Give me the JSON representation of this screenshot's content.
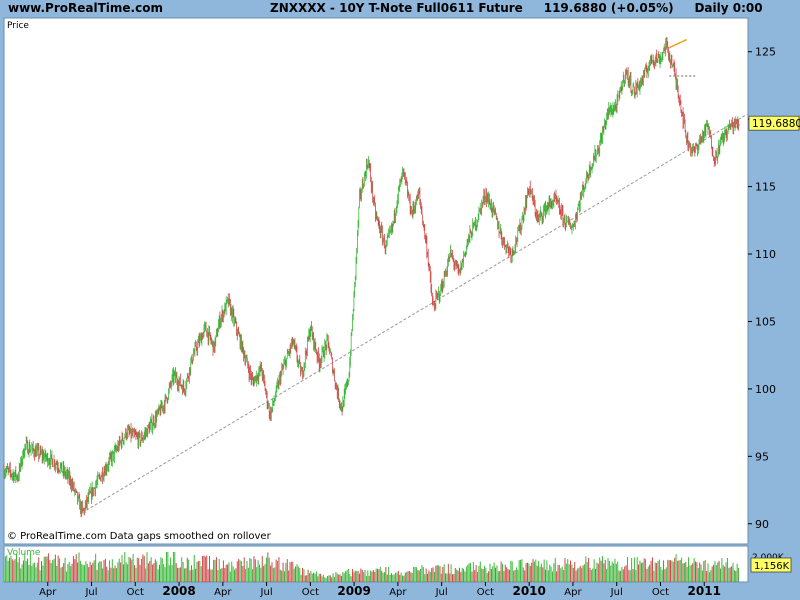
{
  "header": {
    "site": "www.ProRealTime.com",
    "title": "ZNXXXX - 10Y T-Note Full0611 Future",
    "last_price": "119.6880",
    "change": "(+0.05%)",
    "timeframe": "Daily",
    "time": "0:00"
  },
  "colors": {
    "frame_bg": "#8fb7dc",
    "plot_bg": "#ffffff",
    "up": "#3cb83c",
    "down": "#d04848",
    "trendline": "#9a9a9a",
    "price_tag": "#ffff66",
    "annotation_orange": "#f0a020"
  },
  "price_panel": {
    "label": "Price",
    "footer": "© ProRealTime.com  Data gaps smoothed on rollover",
    "last_value_tag": "119.6880"
  },
  "volume_panel": {
    "label": "Volume",
    "top_tick": "2.000K",
    "last_value_tag": "1,156K"
  },
  "chart_data": {
    "type": "line",
    "title": "ZNXXXX - 10Y T-Note Full0611 Future",
    "ylabel": "",
    "y_ticks": [
      90,
      95,
      100,
      105,
      110,
      115,
      120,
      125
    ],
    "y_tick_labels": [
      "90",
      "95",
      "100",
      "105",
      "110",
      "115",
      "",
      "125"
    ],
    "ylim": [
      88.5,
      127.5
    ],
    "xlim": [
      2007.0,
      2011.25
    ],
    "x_ticks": [
      {
        "x": 2007.25,
        "label": "Apr",
        "bold": false
      },
      {
        "x": 2007.5,
        "label": "Jul",
        "bold": false
      },
      {
        "x": 2007.75,
        "label": "Oct",
        "bold": false
      },
      {
        "x": 2008.0,
        "label": "2008",
        "bold": true
      },
      {
        "x": 2008.25,
        "label": "Apr",
        "bold": false
      },
      {
        "x": 2008.5,
        "label": "Jul",
        "bold": false
      },
      {
        "x": 2008.75,
        "label": "Oct",
        "bold": false
      },
      {
        "x": 2009.0,
        "label": "2009",
        "bold": true
      },
      {
        "x": 2009.25,
        "label": "Apr",
        "bold": false
      },
      {
        "x": 2009.5,
        "label": "Jul",
        "bold": false
      },
      {
        "x": 2009.75,
        "label": "Oct",
        "bold": false
      },
      {
        "x": 2010.0,
        "label": "2010",
        "bold": true
      },
      {
        "x": 2010.25,
        "label": "Apr",
        "bold": false
      },
      {
        "x": 2010.5,
        "label": "Jul",
        "bold": false
      },
      {
        "x": 2010.75,
        "label": "Oct",
        "bold": false
      },
      {
        "x": 2011.0,
        "label": "2011",
        "bold": true
      }
    ],
    "series": [
      {
        "name": "",
        "x": [
          2007.0,
          2007.08,
          2007.12,
          2007.2,
          2007.3,
          2007.38,
          2007.45,
          2007.48,
          2007.55,
          2007.62,
          2007.7,
          2007.78,
          2007.85,
          2007.92,
          2007.97,
          2008.03,
          2008.08,
          2008.15,
          2008.2,
          2008.23,
          2008.28,
          2008.35,
          2008.42,
          2008.47,
          2008.52,
          2008.58,
          2008.65,
          2008.7,
          2008.75,
          2008.8,
          2008.85,
          2008.9,
          2008.93,
          2008.97,
          2009.0,
          2009.03,
          2009.08,
          2009.12,
          2009.18,
          2009.22,
          2009.25,
          2009.28,
          2009.33,
          2009.37,
          2009.42,
          2009.45,
          2009.5,
          2009.55,
          2009.6,
          2009.65,
          2009.7,
          2009.75,
          2009.8,
          2009.85,
          2009.9,
          2009.95,
          2010.0,
          2010.05,
          2010.1,
          2010.15,
          2010.2,
          2010.25,
          2010.3,
          2010.35,
          2010.4,
          2010.45,
          2010.5,
          2010.55,
          2010.6,
          2010.65,
          2010.7,
          2010.75,
          2010.78,
          2010.82,
          2010.86,
          2010.9,
          2010.94,
          2010.98,
          2011.02,
          2011.06,
          2011.1,
          2011.15,
          2011.2
        ],
        "y": [
          94.0,
          93.5,
          95.8,
          95.2,
          94.5,
          93.2,
          90.8,
          91.8,
          93.5,
          95.0,
          96.8,
          96.2,
          97.5,
          99.0,
          101.0,
          100.0,
          102.5,
          104.5,
          103.0,
          105.0,
          106.5,
          103.5,
          100.5,
          101.5,
          98.0,
          101.0,
          103.5,
          101.0,
          104.5,
          102.0,
          103.5,
          100.0,
          98.5,
          101.0,
          107.0,
          114.0,
          117.0,
          113.0,
          110.5,
          112.0,
          114.5,
          116.0,
          113.0,
          114.5,
          110.0,
          106.0,
          107.5,
          110.0,
          108.5,
          111.0,
          112.5,
          114.5,
          113.0,
          111.0,
          110.0,
          112.0,
          115.0,
          112.5,
          113.5,
          114.0,
          112.5,
          112.0,
          114.5,
          116.5,
          118.0,
          120.5,
          121.0,
          123.5,
          122.0,
          123.0,
          124.5,
          124.5,
          125.5,
          124.0,
          121.5,
          118.5,
          117.5,
          118.5,
          119.5,
          117.0,
          118.5,
          119.5,
          119.7
        ]
      }
    ],
    "trendline": {
      "x": [
        2007.47,
        2011.25
      ],
      "y": [
        91.0,
        120.4
      ]
    },
    "annotation_segment": {
      "x": [
        2010.8,
        2010.9
      ],
      "y": [
        125.3,
        125.9
      ]
    },
    "dashed_marker": {
      "x": [
        2010.8,
        2010.95
      ],
      "y": [
        123.2,
        123.2
      ]
    },
    "volume": {
      "ylim": [
        0,
        2000
      ],
      "values": [
        1500,
        1300,
        1700,
        1550,
        1250,
        1650,
        1450,
        1200,
        1400,
        1850,
        1550,
        1250,
        1450,
        1650,
        1750,
        1350,
        1550,
        1450,
        1650,
        1950,
        1250,
        1350,
        1550,
        1450,
        1250,
        1150,
        1350,
        1250,
        1550,
        1750,
        1450,
        1350,
        1150,
        850,
        650,
        550,
        450,
        550,
        650,
        700,
        750,
        650,
        800,
        850,
        700,
        750,
        900,
        850,
        950,
        1000,
        900,
        850,
        1000,
        1100,
        950,
        1050,
        1100,
        1150,
        1300,
        1200,
        1350,
        1250,
        1300,
        1400,
        1200,
        1350,
        1300,
        1450,
        1200,
        1300,
        1400,
        1250,
        1350,
        1200,
        1300,
        1450,
        1300,
        1350,
        1200,
        1150,
        1300,
        1250,
        1156
      ]
    }
  }
}
